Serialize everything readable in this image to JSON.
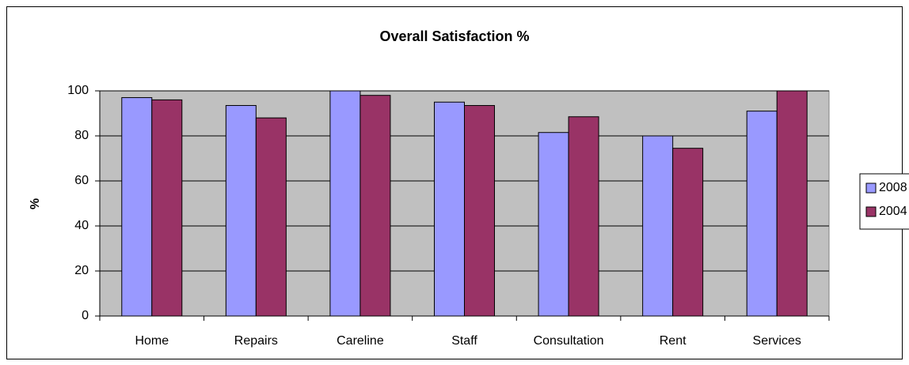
{
  "chart_data": {
    "type": "bar",
    "title": "Overall Satisfaction %",
    "y_label": "%",
    "categories": [
      "Home",
      "Repairs",
      "Careline",
      "Staff",
      "Consultation",
      "Rent",
      "Services"
    ],
    "series": [
      {
        "name": "2008",
        "color": "#9999ff",
        "values": [
          97,
          93.5,
          100,
          95,
          81.5,
          80,
          91
        ]
      },
      {
        "name": "2004",
        "color": "#993366",
        "values": [
          96,
          88,
          98,
          93.5,
          88.5,
          74.5,
          100
        ]
      }
    ],
    "ylim": [
      0,
      100
    ],
    "yticks": [
      0,
      20,
      40,
      60,
      80,
      100
    ],
    "grid": true,
    "legend": "right"
  }
}
